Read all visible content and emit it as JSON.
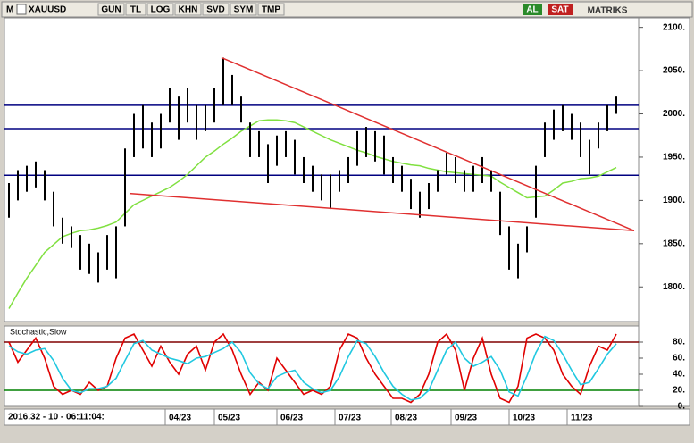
{
  "toolbar": {
    "logo": "M",
    "symbol": "XAUUSD",
    "buttons": [
      "GUN",
      "TL",
      "LOG",
      "KHN",
      "SVD",
      "SYM",
      "TMP"
    ],
    "buy": "AL",
    "sell": "SAT",
    "brand": "MATRIKS"
  },
  "status": "2016.32 - 10 - 06:11:04:",
  "chart_data": [
    {
      "type": "range-bar",
      "color": "#000000",
      "xlim": [
        -0.5,
        70.5
      ],
      "xticks": [
        {
          "value": 17.5,
          "label": "04/23"
        },
        {
          "value": 23,
          "label": "05/23"
        },
        {
          "value": 30,
          "label": "06/23"
        },
        {
          "value": 36.5,
          "label": "07/23"
        },
        {
          "value": 42.8,
          "label": "08/23"
        },
        {
          "value": 49.5,
          "label": "09/23"
        },
        {
          "value": 56,
          "label": "10/23"
        },
        {
          "value": 62.5,
          "label": "11/23"
        }
      ],
      "ylim": [
        1760,
        2111
      ],
      "yticks": [
        {
          "value": 1800,
          "label": "1800."
        },
        {
          "value": 1850,
          "label": "1850."
        },
        {
          "value": 1900,
          "label": "1900."
        },
        {
          "value": 1950,
          "label": "1950."
        },
        {
          "value": 2000,
          "label": "2000."
        },
        {
          "value": 2050,
          "label": "2050."
        },
        {
          "value": 2100,
          "label": "2100."
        }
      ],
      "high": [
        1920,
        1935,
        1940,
        1945,
        1935,
        1910,
        1880,
        1870,
        1860,
        1850,
        1840,
        1860,
        1870,
        1960,
        2000,
        2010,
        1990,
        2000,
        2030,
        2020,
        2030,
        2010,
        2010,
        2030,
        2065,
        2045,
        2020,
        1990,
        1980,
        1965,
        1975,
        1980,
        1970,
        1950,
        1940,
        1930,
        1930,
        1935,
        1950,
        1980,
        1985,
        1980,
        1975,
        1950,
        1940,
        1925,
        1910,
        1920,
        1935,
        1955,
        1950,
        1935,
        1940,
        1950,
        1935,
        1910,
        1870,
        1850,
        1870,
        1940,
        1990,
        2005,
        2010,
        2000,
        1990,
        1970,
        1990,
        2010,
        2020
      ],
      "low": [
        1880,
        1900,
        1910,
        1915,
        1900,
        1870,
        1850,
        1845,
        1820,
        1815,
        1805,
        1820,
        1810,
        1870,
        1950,
        1960,
        1950,
        1960,
        1990,
        1970,
        1990,
        1970,
        1980,
        1990,
        2010,
        2010,
        1990,
        1950,
        1950,
        1920,
        1940,
        1950,
        1930,
        1920,
        1910,
        1900,
        1890,
        1910,
        1920,
        1940,
        1950,
        1945,
        1930,
        1920,
        1910,
        1890,
        1880,
        1890,
        1910,
        1930,
        1920,
        1910,
        1910,
        1920,
        1910,
        1860,
        1820,
        1810,
        1840,
        1880,
        1950,
        1970,
        1980,
        1970,
        1950,
        1930,
        1960,
        1980,
        2000
      ],
      "ma": {
        "color": "#80e040",
        "values": [
          1775,
          1793,
          1810,
          1825,
          1840,
          1849,
          1858,
          1862,
          1865,
          1866,
          1868,
          1871,
          1875,
          1885,
          1895,
          1900,
          1905,
          1910,
          1915,
          1922,
          1930,
          1940,
          1950,
          1957,
          1965,
          1972,
          1980,
          1986,
          1992,
          1993,
          1993,
          1992,
          1990,
          1985,
          1980,
          1975,
          1970,
          1966,
          1962,
          1958,
          1955,
          1951,
          1948,
          1945,
          1943,
          1941,
          1940,
          1937,
          1935,
          1933,
          1932,
          1931,
          1930,
          1929,
          1928,
          1921,
          1915,
          1909,
          1903,
          1904,
          1905,
          1912,
          1920,
          1922,
          1925,
          1926,
          1928,
          1933,
          1938
        ]
      },
      "levels": {
        "color": "#000080",
        "values": [
          2010,
          1983,
          1929
        ]
      },
      "trendlines": {
        "color": "#e03030",
        "lines": [
          [
            [
              23.8,
              2065
            ],
            [
              70,
              1865
            ]
          ],
          [
            [
              13.5,
              1908
            ],
            [
              70,
              1865
            ]
          ]
        ]
      }
    },
    {
      "type": "line",
      "title": "Stochastic,Slow",
      "xlim": [
        -0.5,
        70.5
      ],
      "ylim": [
        0,
        100
      ],
      "yticks": [
        {
          "value": 0,
          "label": "0."
        },
        {
          "value": 20,
          "label": "20."
        },
        {
          "value": 40,
          "label": "40."
        },
        {
          "value": 60,
          "label": "60."
        },
        {
          "value": 80,
          "label": "80."
        }
      ],
      "series": [
        {
          "color": "#e00000",
          "values": [
            80,
            55,
            70,
            85,
            60,
            25,
            15,
            20,
            15,
            30,
            20,
            25,
            60,
            85,
            90,
            70,
            50,
            75,
            55,
            40,
            65,
            75,
            45,
            80,
            90,
            70,
            40,
            15,
            30,
            20,
            60,
            45,
            30,
            15,
            20,
            15,
            25,
            70,
            90,
            85,
            60,
            40,
            25,
            10,
            10,
            5,
            15,
            40,
            80,
            90,
            70,
            20,
            60,
            85,
            40,
            10,
            5,
            25,
            85,
            90,
            85,
            70,
            40,
            25,
            15,
            50,
            75,
            70,
            90
          ]
        },
        {
          "color": "#20c8e0",
          "values": [
            75,
            68,
            65,
            70,
            72,
            57,
            35,
            20,
            17,
            22,
            22,
            25,
            35,
            57,
            78,
            82,
            70,
            65,
            60,
            57,
            53,
            60,
            62,
            67,
            72,
            80,
            67,
            42,
            28,
            22,
            37,
            42,
            45,
            30,
            22,
            17,
            20,
            37,
            62,
            82,
            78,
            62,
            42,
            25,
            15,
            8,
            10,
            20,
            45,
            70,
            80,
            60,
            50,
            55,
            62,
            45,
            18,
            13,
            38,
            67,
            87,
            82,
            65,
            45,
            27,
            30,
            47,
            65,
            78
          ]
        }
      ],
      "levels": [
        {
          "value": 80,
          "color": "#800000"
        },
        {
          "value": 20,
          "color": "#008000"
        }
      ]
    }
  ]
}
